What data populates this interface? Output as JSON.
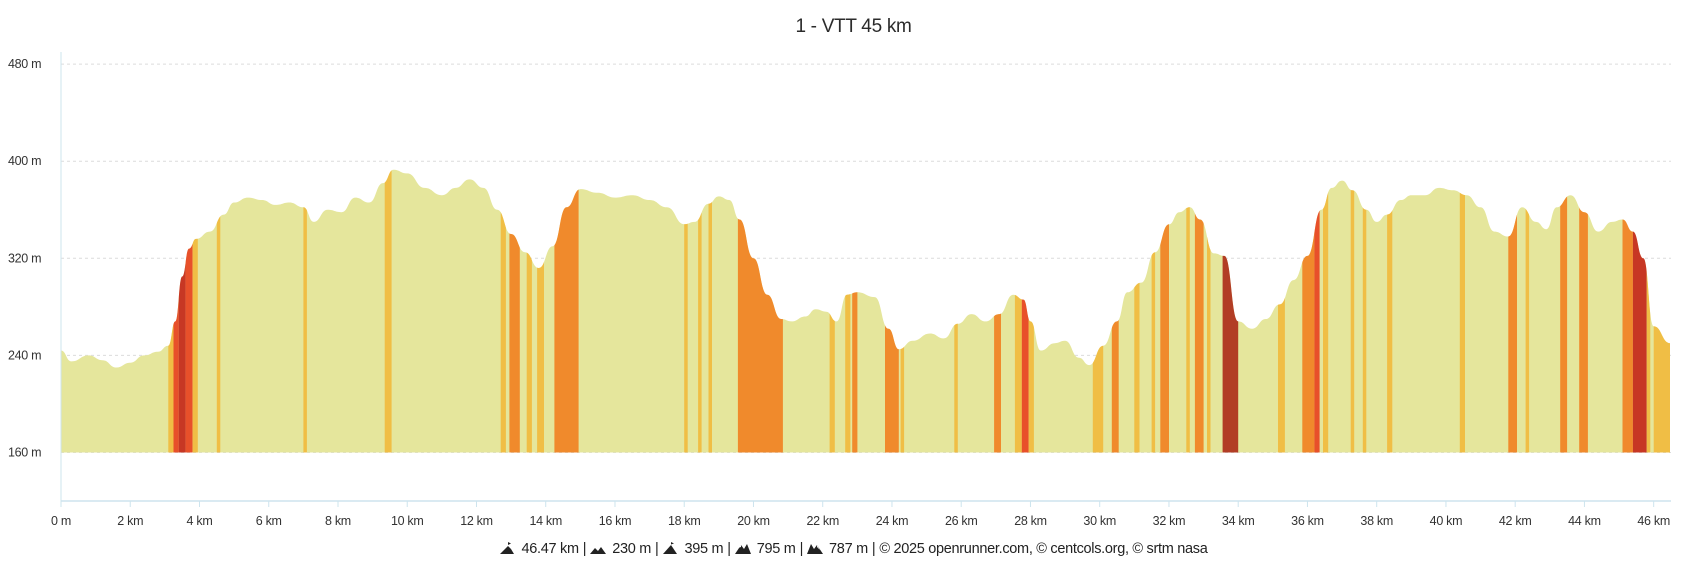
{
  "chart_data": {
    "type": "area",
    "title": "1 - VTT 45 km",
    "x_unit": "km",
    "y_unit": "m",
    "xlim": [
      0,
      46.5
    ],
    "ylim": [
      120,
      490
    ],
    "y_ticks": [
      160,
      240,
      320,
      400,
      480
    ],
    "y_tick_labels": [
      "160 m",
      "240 m",
      "320 m",
      "400 m",
      "480 m"
    ],
    "x_ticks": [
      0,
      2,
      4,
      6,
      8,
      10,
      12,
      14,
      16,
      18,
      20,
      22,
      24,
      26,
      28,
      30,
      32,
      34,
      36,
      38,
      40,
      42,
      44,
      46
    ],
    "x_tick_labels": [
      "0 m",
      "2 km",
      "4 km",
      "6 km",
      "8 km",
      "10 km",
      "12 km",
      "14 km",
      "16 km",
      "18 km",
      "20 km",
      "22 km",
      "24 km",
      "26 km",
      "28 km",
      "30 km",
      "32 km",
      "34 km",
      "36 km",
      "38 km",
      "40 km",
      "42 km",
      "44 km",
      "46 km"
    ],
    "grid": true,
    "profile": {
      "x": [
        0,
        0.3,
        0.8,
        1.2,
        1.6,
        2.0,
        2.4,
        2.8,
        3.1,
        3.3,
        3.5,
        3.7,
        3.9,
        4.3,
        4.7,
        5.0,
        5.4,
        5.8,
        6.2,
        6.6,
        7.0,
        7.3,
        7.7,
        8.1,
        8.5,
        8.9,
        9.3,
        9.6,
        10.0,
        10.5,
        11.0,
        11.4,
        11.8,
        12.2,
        12.6,
        13.0,
        13.4,
        13.8,
        14.2,
        14.6,
        15.0,
        15.5,
        16.0,
        16.5,
        17.0,
        17.5,
        18.0,
        18.3,
        18.7,
        19.0,
        19.3,
        19.6,
        20.0,
        20.4,
        20.8,
        21.1,
        21.5,
        21.8,
        22.1,
        22.4,
        22.7,
        23.0,
        23.5,
        23.9,
        24.2,
        24.6,
        25.1,
        25.5,
        25.9,
        26.3,
        26.7,
        27.1,
        27.5,
        27.8,
        28.0,
        28.3,
        28.7,
        29.0,
        29.4,
        29.7,
        30.1,
        30.5,
        30.8,
        31.2,
        31.6,
        32.0,
        32.3,
        32.6,
        32.9,
        33.3,
        33.6,
        34.0,
        34.4,
        34.8,
        35.2,
        35.6,
        36.0,
        36.4,
        36.7,
        37.0,
        37.3,
        37.7,
        38.0,
        38.3,
        38.7,
        39.0,
        39.4,
        39.8,
        40.2,
        40.6,
        41.0,
        41.4,
        41.8,
        42.2,
        42.6,
        42.9,
        43.2,
        43.6,
        44.0,
        44.4,
        44.8,
        45.1,
        45.4,
        45.7,
        46.0,
        46.47
      ],
      "y": [
        244,
        235,
        240,
        236,
        230,
        234,
        240,
        243,
        248,
        268,
        305,
        328,
        336,
        342,
        356,
        366,
        370,
        368,
        364,
        366,
        362,
        350,
        360,
        358,
        370,
        366,
        382,
        393,
        390,
        378,
        372,
        378,
        385,
        378,
        360,
        340,
        325,
        312,
        330,
        362,
        377,
        374,
        370,
        372,
        368,
        362,
        348,
        350,
        365,
        371,
        368,
        352,
        320,
        290,
        270,
        268,
        272,
        278,
        276,
        268,
        290,
        292,
        288,
        262,
        245,
        252,
        258,
        254,
        266,
        274,
        268,
        274,
        290,
        286,
        268,
        244,
        250,
        252,
        238,
        232,
        248,
        268,
        292,
        300,
        325,
        348,
        358,
        362,
        352,
        324,
        322,
        268,
        262,
        270,
        282,
        302,
        322,
        360,
        378,
        384,
        376,
        360,
        350,
        356,
        368,
        372,
        372,
        378,
        376,
        372,
        362,
        342,
        338,
        362,
        350,
        344,
        362,
        372,
        358,
        342,
        350,
        352,
        342,
        320,
        264,
        250
      ]
    },
    "slope_bands": [
      {
        "from": 3.1,
        "to": 3.25,
        "color": "#f0be45"
      },
      {
        "from": 3.25,
        "to": 3.4,
        "color": "#e8502a"
      },
      {
        "from": 3.4,
        "to": 3.6,
        "color": "#c73724"
      },
      {
        "from": 3.6,
        "to": 3.8,
        "color": "#e8502a"
      },
      {
        "from": 3.8,
        "to": 3.95,
        "color": "#f0be45"
      },
      {
        "from": 4.5,
        "to": 4.6,
        "color": "#f0be45"
      },
      {
        "from": 7.0,
        "to": 7.1,
        "color": "#f0be45"
      },
      {
        "from": 9.35,
        "to": 9.55,
        "color": "#f0be45"
      },
      {
        "from": 12.7,
        "to": 12.85,
        "color": "#f0be45"
      },
      {
        "from": 12.95,
        "to": 13.25,
        "color": "#f08a2c"
      },
      {
        "from": 13.45,
        "to": 13.6,
        "color": "#f0be45"
      },
      {
        "from": 13.75,
        "to": 13.95,
        "color": "#f0be45"
      },
      {
        "from": 14.25,
        "to": 14.95,
        "color": "#f08a2c"
      },
      {
        "from": 18.0,
        "to": 18.1,
        "color": "#f0be45"
      },
      {
        "from": 18.4,
        "to": 18.5,
        "color": "#f0be45"
      },
      {
        "from": 18.7,
        "to": 18.8,
        "color": "#f0be45"
      },
      {
        "from": 19.55,
        "to": 20.85,
        "color": "#f08a2c"
      },
      {
        "from": 22.2,
        "to": 22.35,
        "color": "#f0be45"
      },
      {
        "from": 22.65,
        "to": 22.8,
        "color": "#f0be45"
      },
      {
        "from": 22.85,
        "to": 23.0,
        "color": "#f08a2c"
      },
      {
        "from": 23.8,
        "to": 24.2,
        "color": "#f08a2c"
      },
      {
        "from": 24.25,
        "to": 24.35,
        "color": "#f0be45"
      },
      {
        "from": 25.8,
        "to": 25.9,
        "color": "#f0be45"
      },
      {
        "from": 26.95,
        "to": 27.15,
        "color": "#f08a2c"
      },
      {
        "from": 27.55,
        "to": 27.75,
        "color": "#f0be45"
      },
      {
        "from": 27.75,
        "to": 27.95,
        "color": "#e8502a"
      },
      {
        "from": 27.95,
        "to": 28.1,
        "color": "#f0be45"
      },
      {
        "from": 29.8,
        "to": 30.1,
        "color": "#f0be45"
      },
      {
        "from": 30.35,
        "to": 30.55,
        "color": "#f08a2c"
      },
      {
        "from": 31.0,
        "to": 31.15,
        "color": "#f0be45"
      },
      {
        "from": 31.5,
        "to": 31.6,
        "color": "#f0be45"
      },
      {
        "from": 31.75,
        "to": 32.0,
        "color": "#f08a2c"
      },
      {
        "from": 32.5,
        "to": 32.6,
        "color": "#f0be45"
      },
      {
        "from": 32.75,
        "to": 33.0,
        "color": "#f08a2c"
      },
      {
        "from": 33.1,
        "to": 33.2,
        "color": "#f0be45"
      },
      {
        "from": 33.55,
        "to": 34.0,
        "color": "#b23d25"
      },
      {
        "from": 35.15,
        "to": 35.35,
        "color": "#f0be45"
      },
      {
        "from": 35.85,
        "to": 36.2,
        "color": "#f08a2c"
      },
      {
        "from": 36.2,
        "to": 36.35,
        "color": "#e8502a"
      },
      {
        "from": 36.45,
        "to": 36.6,
        "color": "#f0be45"
      },
      {
        "from": 37.25,
        "to": 37.35,
        "color": "#f0be45"
      },
      {
        "from": 37.6,
        "to": 37.7,
        "color": "#f0be45"
      },
      {
        "from": 38.3,
        "to": 38.45,
        "color": "#f0be45"
      },
      {
        "from": 40.4,
        "to": 40.55,
        "color": "#f0be45"
      },
      {
        "from": 41.8,
        "to": 42.05,
        "color": "#f08a2c"
      },
      {
        "from": 42.3,
        "to": 42.4,
        "color": "#f0be45"
      },
      {
        "from": 43.3,
        "to": 43.5,
        "color": "#f08a2c"
      },
      {
        "from": 43.85,
        "to": 44.1,
        "color": "#f08a2c"
      },
      {
        "from": 45.1,
        "to": 45.4,
        "color": "#f08a2c"
      },
      {
        "from": 45.4,
        "to": 45.8,
        "color": "#c73724"
      },
      {
        "from": 45.8,
        "to": 45.9,
        "color": "#f0be45"
      },
      {
        "from": 46.0,
        "to": 46.47,
        "color": "#f0be45"
      }
    ],
    "colors": {
      "fill": "#e5e69c",
      "grid": "#dcdcdc",
      "axis": "#cde4ee"
    }
  },
  "footer": {
    "distance": "46.47 km",
    "min_altitude": "230 m",
    "max_altitude": "395 m",
    "elevation_gain": "795 m",
    "elevation_loss": "787 m",
    "copyright": "© 2025 openrunner.com, © centcols.org, © srtm nasa"
  }
}
